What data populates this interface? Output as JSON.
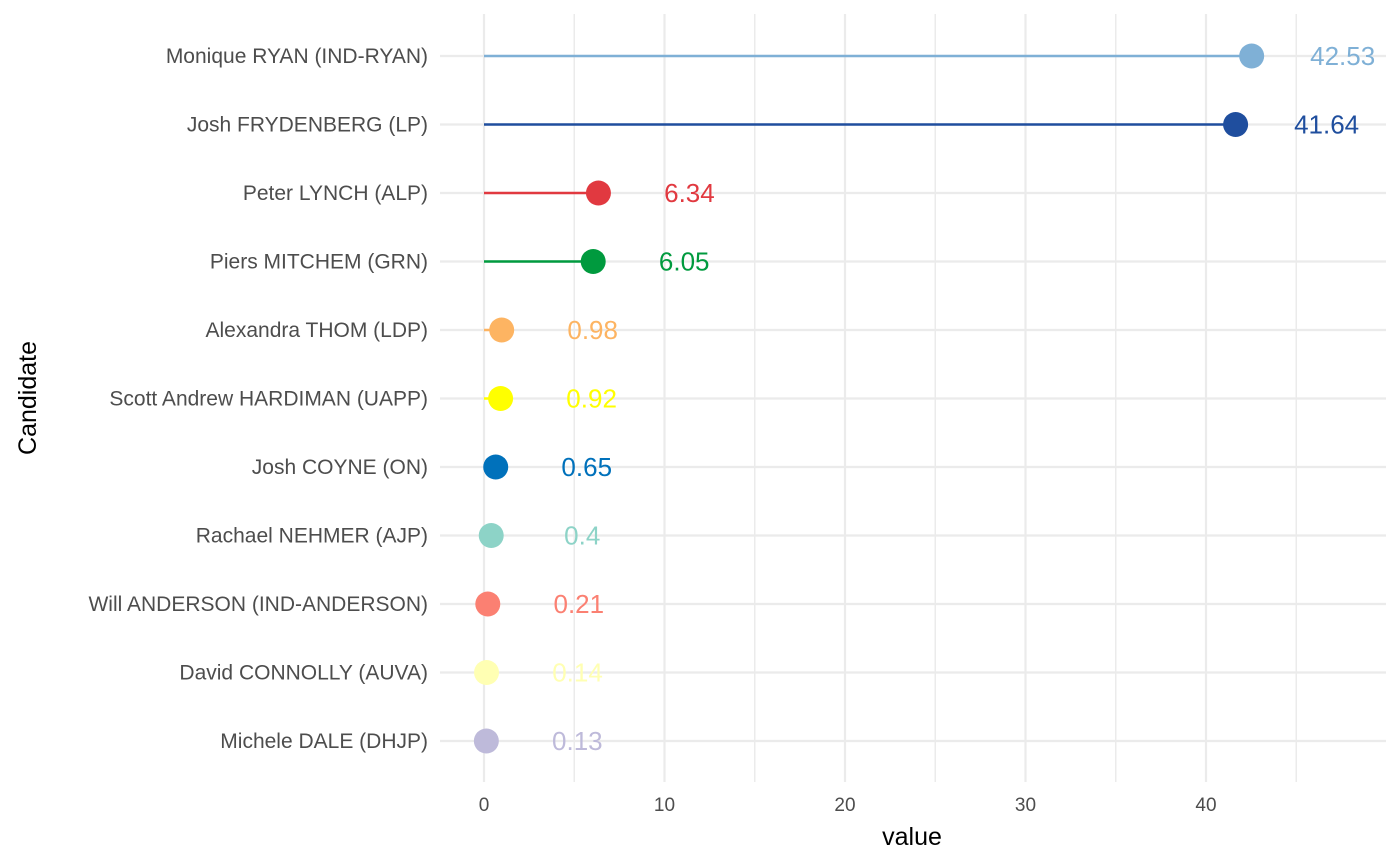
{
  "chart_data": {
    "type": "lollipop",
    "xlabel": "value",
    "ylabel": "Candidate",
    "xlim": [
      -2.3,
      49.5
    ],
    "x_major_ticks": [
      0,
      10,
      20,
      30,
      40
    ],
    "x_minor_ticks": [
      5,
      15,
      25,
      35,
      45
    ],
    "grid": true,
    "candidates": [
      {
        "label": "Monique RYAN (IND-RYAN)",
        "value": 42.53,
        "value_label": "42.53",
        "color": "#7fb0d6"
      },
      {
        "label": "Josh FRYDENBERG (LP)",
        "value": 41.64,
        "value_label": "41.64",
        "color": "#1f4e9e"
      },
      {
        "label": "Peter LYNCH (ALP)",
        "value": 6.34,
        "value_label": "6.34",
        "color": "#e13940"
      },
      {
        "label": "Piers MITCHEM (GRN)",
        "value": 6.05,
        "value_label": "6.05",
        "color": "#009a3e"
      },
      {
        "label": "Alexandra THOM (LDP)",
        "value": 0.98,
        "value_label": "0.98",
        "color": "#fdb462"
      },
      {
        "label": "Scott Andrew HARDIMAN (UAPP)",
        "value": 0.92,
        "value_label": "0.92",
        "color": "#ffff00"
      },
      {
        "label": "Josh COYNE (ON)",
        "value": 0.65,
        "value_label": "0.65",
        "color": "#0071bb"
      },
      {
        "label": "Rachael NEHMER (AJP)",
        "value": 0.4,
        "value_label": "0.4",
        "color": "#8dd3c7"
      },
      {
        "label": "Will ANDERSON (IND-ANDERSON)",
        "value": 0.21,
        "value_label": "0.21",
        "color": "#fb8072"
      },
      {
        "label": "David CONNOLLY (AUVA)",
        "value": 0.14,
        "value_label": "0.14",
        "color": "#ffffb3"
      },
      {
        "label": "Michele DALE (DHJP)",
        "value": 0.13,
        "value_label": "0.13",
        "color": "#bebada"
      }
    ]
  }
}
